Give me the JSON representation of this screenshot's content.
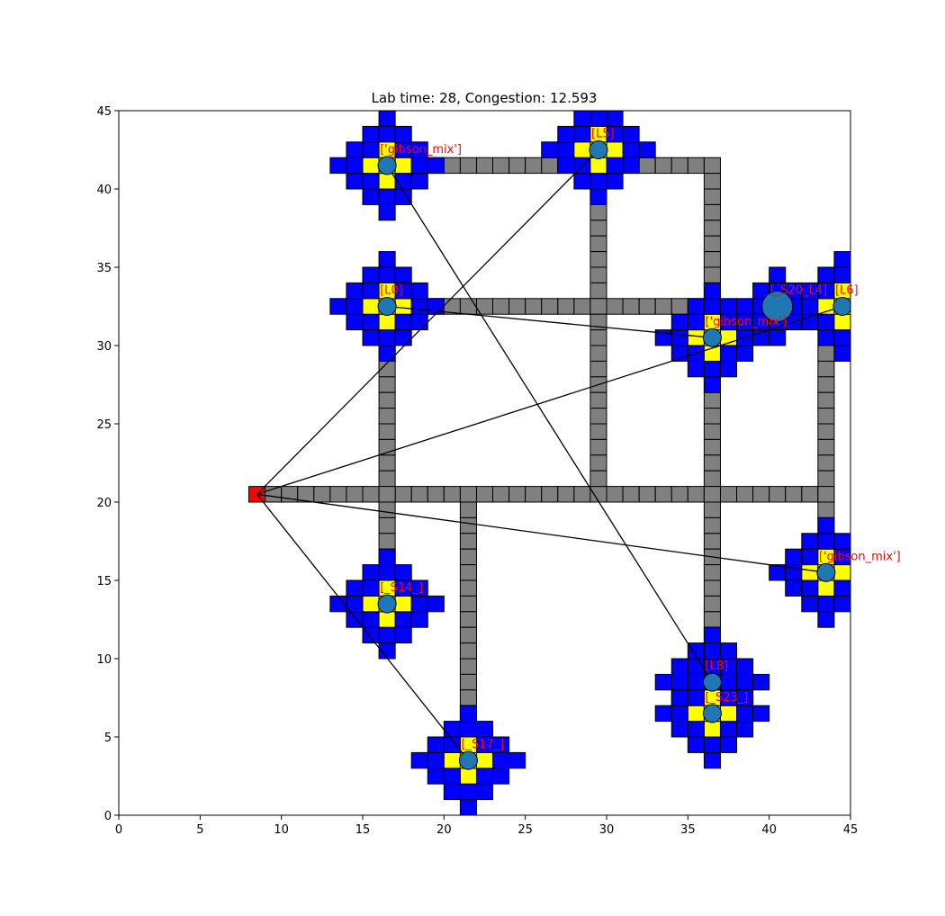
{
  "chart_data": {
    "type": "scatter",
    "title": "Lab time: 28, Congestion: 12.593",
    "xlabel": "",
    "ylabel": "",
    "xlim": [
      0,
      45
    ],
    "ylim": [
      0,
      45
    ],
    "xticks": [
      "0",
      "5",
      "10",
      "15",
      "20",
      "25",
      "30",
      "35",
      "40",
      "45"
    ],
    "yticks": [
      "0",
      "5",
      "10",
      "15",
      "20",
      "25",
      "30",
      "35",
      "40",
      "45"
    ],
    "grid": false,
    "colors": {
      "track": "#808080",
      "cell_blue": "#0000ff",
      "cell_yellow": "#ffff00",
      "node": "#1f77b4",
      "source": "#ff0000",
      "label": "#ff0000",
      "edge": "#000000"
    },
    "source": {
      "x": 8.5,
      "y": 20.5
    },
    "tracks": [
      {
        "x1": 19.5,
        "y1": 41.5,
        "x2": 36.5,
        "y2": 41.5
      },
      {
        "x1": 17.5,
        "y1": 32.5,
        "x2": 36.5,
        "y2": 32.5
      },
      {
        "x1": 9.5,
        "y1": 20.5,
        "x2": 43.5,
        "y2": 20.5
      },
      {
        "x1": 29.5,
        "y1": 40.5,
        "x2": 29.5,
        "y2": 21.5
      },
      {
        "x1": 36.5,
        "y1": 40.5,
        "x2": 36.5,
        "y2": 11.5
      },
      {
        "x1": 16.5,
        "y1": 30.5,
        "x2": 16.5,
        "y2": 16.5
      },
      {
        "x1": 21.5,
        "y1": 19.5,
        "x2": 21.5,
        "y2": 6.5
      },
      {
        "x1": 43.5,
        "y1": 29.5,
        "x2": 43.5,
        "y2": 17.5
      }
    ],
    "stations": [
      {
        "x": 16.5,
        "y": 41.5,
        "label": "['gibson_mix']",
        "size": 1
      },
      {
        "x": 29.5,
        "y": 42.5,
        "label": "[L5]",
        "size": 1
      },
      {
        "x": 16.5,
        "y": 32.5,
        "label": "[L0]",
        "size": 1
      },
      {
        "x": 36.5,
        "y": 30.5,
        "label": "['gibson_mix']",
        "size": 1
      },
      {
        "x": 40.5,
        "y": 32.5,
        "label": "[_S20_L4]",
        "size": 2
      },
      {
        "x": 44.5,
        "y": 32.5,
        "label": "[L6]",
        "size": 1
      },
      {
        "x": 43.5,
        "y": 15.5,
        "label": "['gibson_mix']",
        "size": 1
      },
      {
        "x": 16.5,
        "y": 13.5,
        "label": "[_S14_]",
        "size": 1
      },
      {
        "x": 21.5,
        "y": 3.5,
        "label": "[_S17_]",
        "size": 1
      },
      {
        "x": 36.5,
        "y": 8.5,
        "label": "[L8]",
        "size": 1
      },
      {
        "x": 36.5,
        "y": 6.5,
        "label": "[_S23_]",
        "size": 1
      }
    ],
    "edges": [
      {
        "x1": 8.5,
        "y1": 20.5,
        "x2": 29.5,
        "y2": 42.5
      },
      {
        "x1": 8.5,
        "y1": 20.5,
        "x2": 44.5,
        "y2": 32.5
      },
      {
        "x1": 8.5,
        "y1": 20.5,
        "x2": 43.5,
        "y2": 15.5
      },
      {
        "x1": 8.5,
        "y1": 20.5,
        "x2": 21.5,
        "y2": 3.5
      },
      {
        "x1": 16.5,
        "y1": 32.5,
        "x2": 36.5,
        "y2": 30.5
      },
      {
        "x1": 16.5,
        "y1": 41.5,
        "x2": 36.5,
        "y2": 8.5
      }
    ]
  }
}
